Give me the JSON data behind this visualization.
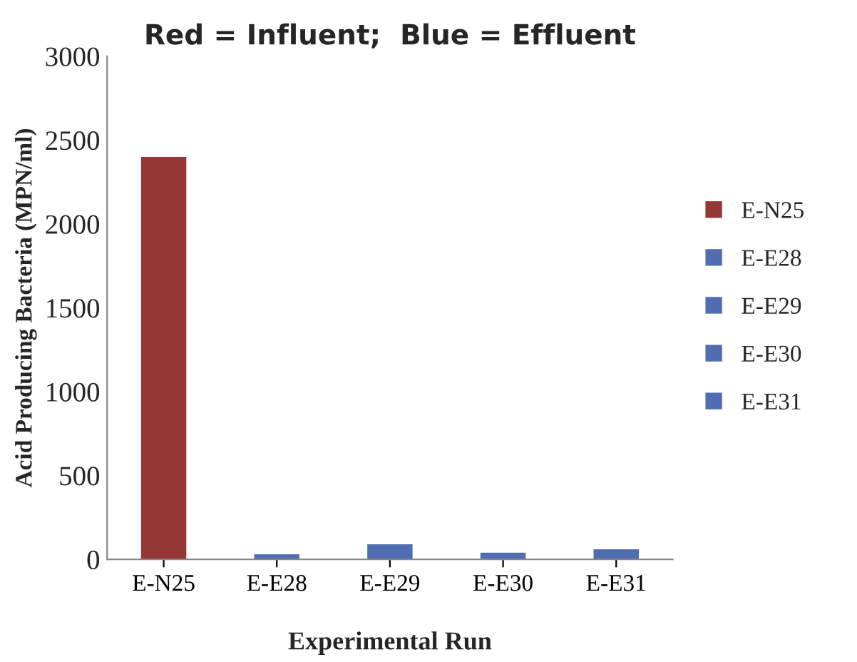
{
  "chart_data": {
    "type": "bar",
    "title": "Red = Influent;  Blue = Effluent",
    "xlabel": "Experimental Run",
    "ylabel": "Acid Producing Bacteria (MPN/ml)",
    "categories": [
      "E-N25",
      "E-E28",
      "E-E29",
      "E-E30",
      "E-E31"
    ],
    "series": [
      {
        "name": "E-N25",
        "color": "#953735",
        "values": [
          2400,
          null,
          null,
          null,
          null
        ]
      },
      {
        "name": "E-E28",
        "color": "#4f6db0",
        "values": [
          null,
          30,
          null,
          null,
          null
        ]
      },
      {
        "name": "E-E29",
        "color": "#4f6db0",
        "values": [
          null,
          null,
          90,
          null,
          null
        ]
      },
      {
        "name": "E-E30",
        "color": "#4f6db0",
        "values": [
          null,
          null,
          null,
          40,
          null
        ]
      },
      {
        "name": "E-E31",
        "color": "#4f6db0",
        "values": [
          null,
          null,
          null,
          null,
          60
        ]
      }
    ],
    "ylim": [
      0,
      3000
    ],
    "yticks": [
      0,
      500,
      1000,
      1500,
      2000,
      2500,
      3000
    ],
    "grid": false,
    "legend": "right"
  }
}
